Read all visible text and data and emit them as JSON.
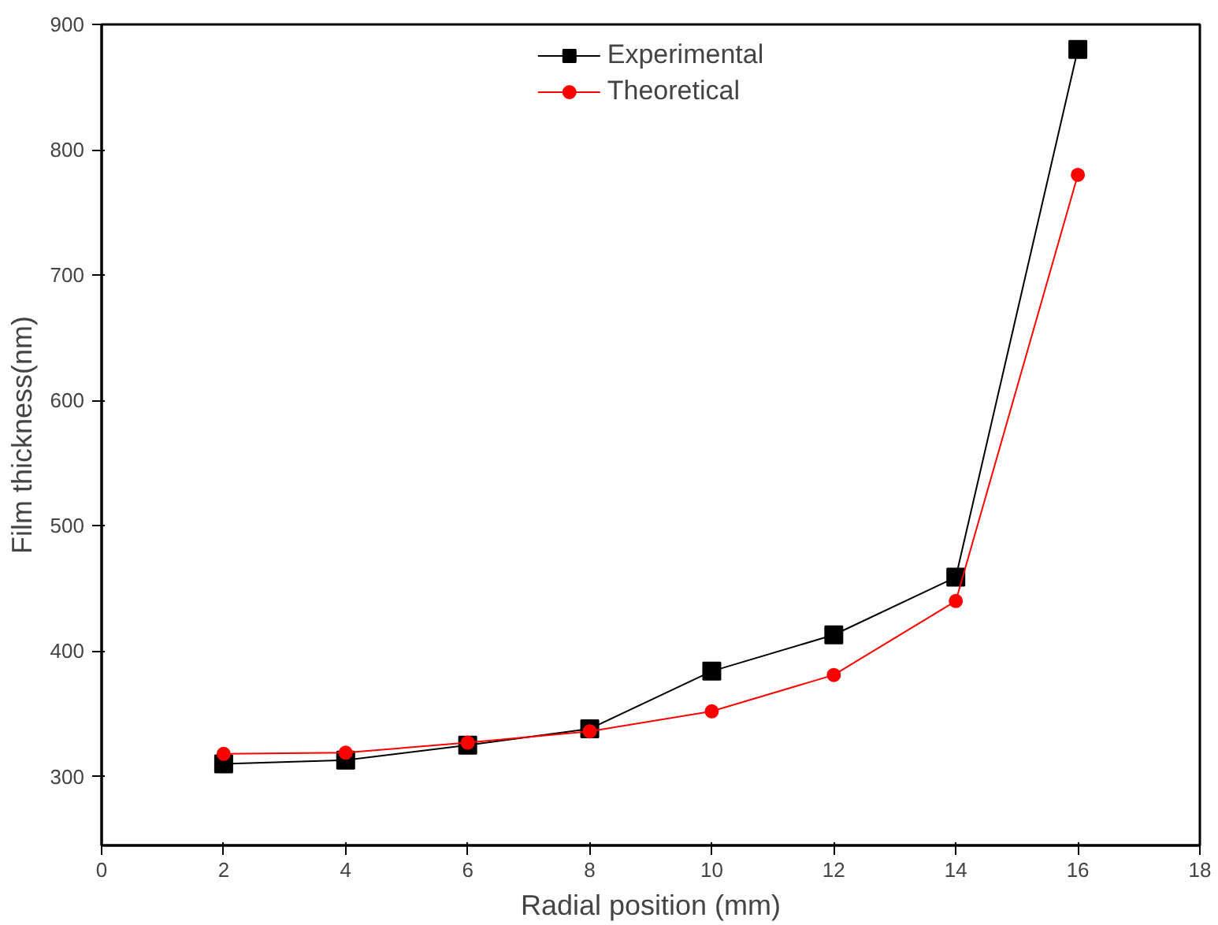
{
  "chart_data": {
    "type": "line",
    "xlabel": "Radial position (mm)",
    "ylabel": "Film thickness(nm)",
    "x": [
      2,
      4,
      6,
      8,
      10,
      12,
      14,
      16
    ],
    "series": [
      {
        "name": "Experimental",
        "color": "#000000",
        "marker": "square",
        "values": [
          310,
          313,
          325,
          338,
          384,
          413,
          459,
          880
        ]
      },
      {
        "name": "Theoretical",
        "color": "#ff0000",
        "marker": "circle",
        "values": [
          318,
          319,
          327,
          336,
          352,
          381,
          440,
          780
        ]
      }
    ],
    "xlim": [
      0,
      18
    ],
    "xticks": [
      0,
      2,
      4,
      6,
      8,
      10,
      12,
      14,
      16,
      18
    ],
    "ylim": [
      245,
      900
    ],
    "yticks": [
      300,
      400,
      500,
      600,
      700,
      800,
      900
    ],
    "grid": false,
    "legend": "top",
    "line_style": "solid"
  }
}
